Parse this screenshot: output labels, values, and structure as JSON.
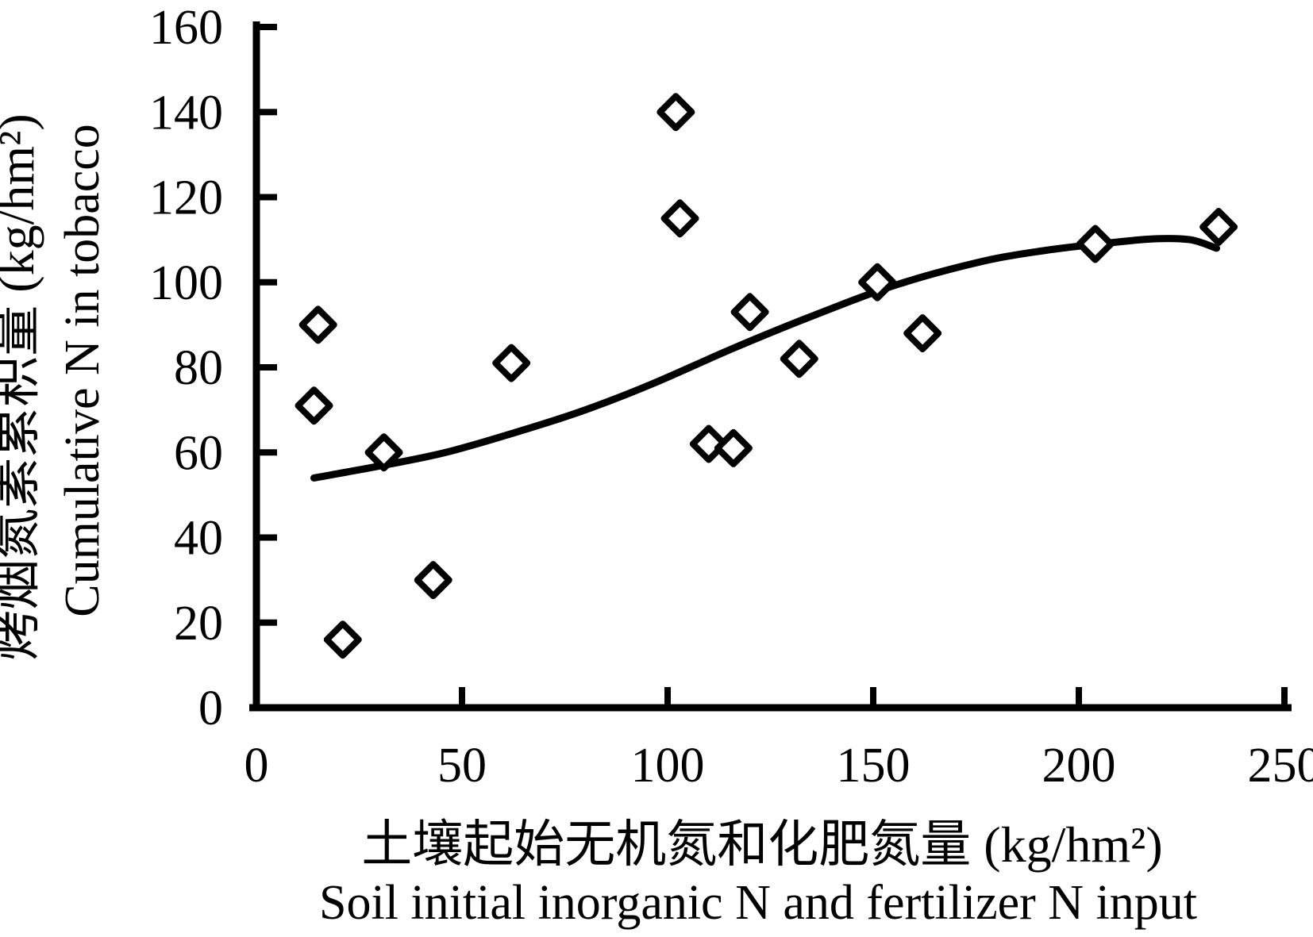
{
  "chart_data": {
    "type": "scatter",
    "title": "",
    "xlabel_zh": "土壤起始无机氮和化肥氮量 (kg/hm²)",
    "xlabel_en": "Soil initial inorganic N and fertilizer N input",
    "ylabel_zh": "烤烟氮素累积量 (kg/hm²)",
    "ylabel_en": "Cumulative N in tobacco",
    "xlim": [
      0,
      250
    ],
    "ylim": [
      0,
      160
    ],
    "x_ticks": [
      0,
      50,
      100,
      150,
      200,
      250
    ],
    "y_ticks": [
      0,
      20,
      40,
      60,
      80,
      100,
      120,
      140,
      160
    ],
    "grid": false,
    "legend": "none",
    "marker": "open-diamond",
    "points": [
      {
        "x": 15,
        "y": 90
      },
      {
        "x": 14,
        "y": 71
      },
      {
        "x": 21,
        "y": 16
      },
      {
        "x": 31,
        "y": 60
      },
      {
        "x": 43,
        "y": 30
      },
      {
        "x": 62,
        "y": 81
      },
      {
        "x": 102,
        "y": 140
      },
      {
        "x": 103,
        "y": 115
      },
      {
        "x": 110,
        "y": 62
      },
      {
        "x": 116,
        "y": 61
      },
      {
        "x": 120,
        "y": 93
      },
      {
        "x": 132,
        "y": 82
      },
      {
        "x": 151,
        "y": 100
      },
      {
        "x": 162,
        "y": 88
      },
      {
        "x": 204,
        "y": 109
      },
      {
        "x": 234,
        "y": 113
      }
    ],
    "trend_curve": [
      [
        14,
        54
      ],
      [
        31,
        57
      ],
      [
        46,
        60
      ],
      [
        64,
        65
      ],
      [
        80,
        70
      ],
      [
        96,
        76
      ],
      [
        116,
        84.5
      ],
      [
        135,
        92
      ],
      [
        156,
        99.5
      ],
      [
        177,
        105
      ],
      [
        192,
        107.5
      ],
      [
        205,
        109
      ],
      [
        218,
        110.2
      ],
      [
        227,
        110
      ],
      [
        233.5,
        108
      ]
    ]
  },
  "colors": {
    "ink": "#000000",
    "background": "#ffffff"
  }
}
